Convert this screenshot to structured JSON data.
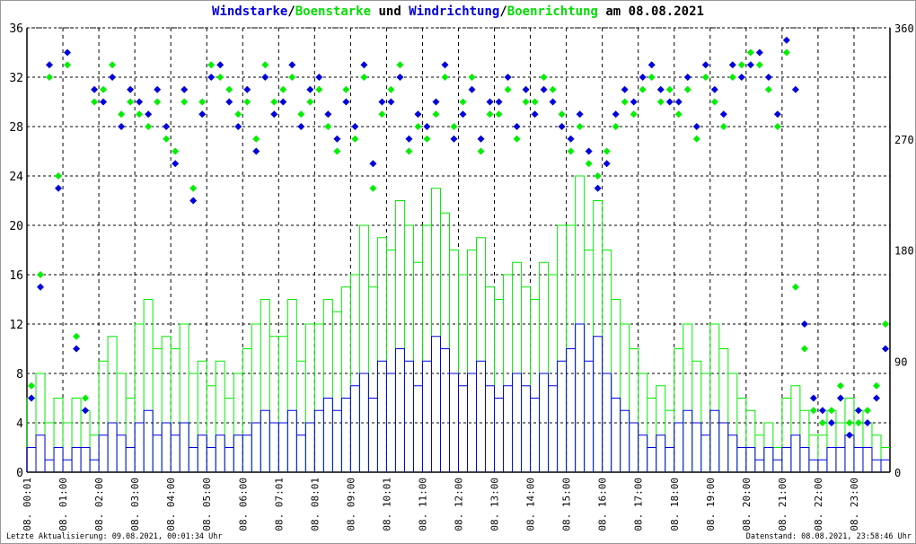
{
  "title_parts": {
    "a": "Windstarke",
    "sep1": "/",
    "b": "Boenstarke",
    "mid": " und ",
    "c": "Windrichtung",
    "sep2": "/",
    "d": "Boenrichtung",
    "end": " am 08.08.2021"
  },
  "footer": {
    "left": "Letzte Aktualisierung: 09.08.2021, 00:01:34 Uhr",
    "right": "Datenstand: 08.08.2021, 23:58:46 Uhr"
  },
  "colors": {
    "wind": "#0000dd",
    "gust": "#00ee00",
    "grid": "#000000"
  },
  "chart_data": {
    "type": "line",
    "title": "Windstarke/Boenstarke und Windrichtung/Boenrichtung am 08.08.2021",
    "x_unit": "hours",
    "x_step_hours": 0.25,
    "xlim": [
      0,
      24
    ],
    "x_tick_labels": [
      "08. 00:01",
      "08. 01:00",
      "08. 02:00",
      "08. 03:00",
      "08. 04:00",
      "08. 05:00",
      "08. 06:00",
      "08. 07:01",
      "08. 08:01",
      "08. 09:00",
      "08. 10:01",
      "08. 11:00",
      "08. 12:00",
      "08. 13:00",
      "08. 14:00",
      "08. 15:00",
      "08. 16:00",
      "08. 17:00",
      "08. 18:00",
      "08. 19:00",
      "08. 20:00",
      "08. 21:00",
      "08. 22:00",
      "08. 23:00"
    ],
    "ylim_left": [
      0,
      36
    ],
    "y_ticks_left": [
      "0",
      "4",
      "8",
      "12",
      "16",
      "20",
      "24",
      "28",
      "32",
      "36"
    ],
    "ylim_right": [
      0,
      360
    ],
    "y_ticks_right": [
      "0",
      "90",
      "180",
      "270",
      "360"
    ],
    "grid": true,
    "series": [
      {
        "name": "Windstarke",
        "axis": "left",
        "kind": "line",
        "color": "#0000dd",
        "values": [
          2,
          3,
          1,
          2,
          1,
          2,
          2,
          1,
          3,
          4,
          3,
          2,
          4,
          5,
          3,
          4,
          3,
          4,
          2,
          3,
          2,
          3,
          2,
          3,
          3,
          4,
          5,
          4,
          4,
          5,
          3,
          4,
          5,
          6,
          5,
          6,
          7,
          8,
          6,
          9,
          8,
          10,
          9,
          7,
          9,
          11,
          10,
          8,
          7,
          8,
          9,
          7,
          6,
          7,
          8,
          7,
          6,
          8,
          7,
          9,
          10,
          12,
          9,
          11,
          8,
          6,
          5,
          4,
          3,
          2,
          3,
          2,
          4,
          5,
          4,
          3,
          5,
          4,
          3,
          2,
          2,
          1,
          2,
          1,
          2,
          3,
          2,
          1,
          1,
          2,
          2,
          3,
          2,
          2,
          1,
          1
        ]
      },
      {
        "name": "Boenstarke",
        "axis": "left",
        "kind": "line",
        "color": "#00ee00",
        "values": [
          6,
          8,
          4,
          6,
          4,
          6,
          5,
          3,
          9,
          11,
          8,
          6,
          12,
          14,
          10,
          11,
          10,
          12,
          8,
          9,
          7,
          9,
          6,
          8,
          10,
          12,
          14,
          11,
          11,
          14,
          9,
          12,
          12,
          14,
          13,
          15,
          16,
          20,
          15,
          19,
          18,
          22,
          20,
          17,
          20,
          23,
          21,
          18,
          16,
          18,
          19,
          15,
          14,
          16,
          17,
          15,
          14,
          17,
          16,
          20,
          20,
          24,
          18,
          22,
          18,
          14,
          12,
          10,
          8,
          6,
          7,
          5,
          10,
          12,
          9,
          8,
          12,
          10,
          8,
          6,
          5,
          3,
          4,
          2,
          6,
          7,
          5,
          3,
          3,
          5,
          4,
          6,
          5,
          4,
          3,
          2
        ]
      },
      {
        "name": "Windrichtung",
        "axis": "right",
        "kind": "scatter",
        "color": "#0000dd",
        "values": [
          60,
          150,
          330,
          230,
          340,
          100,
          50,
          310,
          300,
          320,
          280,
          310,
          300,
          290,
          310,
          280,
          250,
          310,
          220,
          290,
          320,
          330,
          300,
          280,
          310,
          260,
          320,
          290,
          300,
          330,
          280,
          310,
          320,
          290,
          270,
          300,
          280,
          330,
          250,
          300,
          300,
          320,
          270,
          290,
          280,
          300,
          330,
          270,
          290,
          310,
          270,
          300,
          300,
          320,
          280,
          310,
          290,
          310,
          300,
          280,
          270,
          290,
          260,
          230,
          250,
          290,
          310,
          300,
          320,
          330,
          310,
          300,
          300,
          320,
          280,
          330,
          310,
          290,
          330,
          320,
          330,
          340,
          320,
          290,
          350,
          310,
          120,
          60,
          50,
          40,
          60,
          30,
          50,
          40,
          60,
          100
        ]
      },
      {
        "name": "Boenrichtung",
        "axis": "right",
        "kind": "scatter",
        "color": "#00ee00",
        "values": [
          70,
          160,
          320,
          240,
          330,
          110,
          60,
          300,
          310,
          330,
          290,
          300,
          290,
          280,
          300,
          270,
          260,
          300,
          230,
          300,
          330,
          320,
          310,
          290,
          300,
          270,
          330,
          300,
          310,
          320,
          290,
          300,
          310,
          280,
          260,
          310,
          270,
          320,
          230,
          290,
          310,
          330,
          260,
          280,
          270,
          290,
          320,
          280,
          300,
          320,
          260,
          290,
          290,
          310,
          270,
          300,
          300,
          320,
          310,
          290,
          260,
          280,
          250,
          240,
          260,
          280,
          300,
          290,
          310,
          320,
          300,
          310,
          290,
          310,
          270,
          320,
          300,
          280,
          320,
          330,
          340,
          330,
          310,
          280,
          340,
          150,
          100,
          50,
          40,
          50,
          70,
          40,
          40,
          50,
          70,
          120
        ]
      }
    ]
  }
}
